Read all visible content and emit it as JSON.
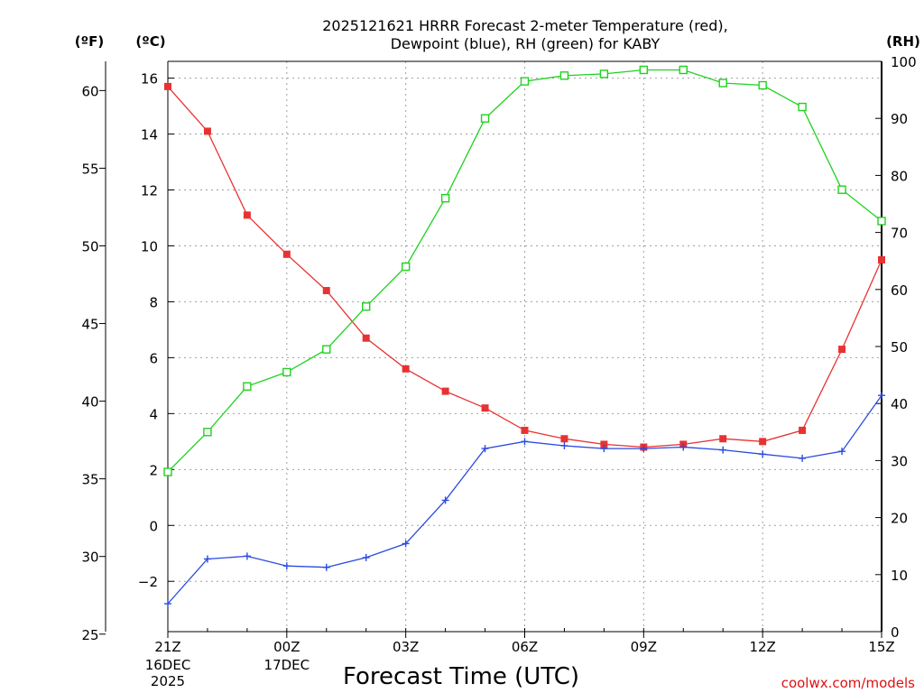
{
  "chart_data": {
    "type": "line",
    "title": [
      "2025121621 HRRR Forecast 2-meter Temperature (red),",
      "Dewpoint (blue), RH (green) for KABY"
    ],
    "xlabel": "Forecast Time (UTC)",
    "credit": "coolwx.com/models",
    "units": {
      "fahrenheit": "(ºF)",
      "celsius": "(ºC)",
      "rh": "(RH)"
    },
    "x_hours": [
      0,
      1,
      2,
      3,
      4,
      5,
      6,
      7,
      8,
      9,
      10,
      11,
      12,
      13,
      14,
      15,
      16,
      17,
      18
    ],
    "x_ticks": [
      {
        "hour": 0,
        "label": "21Z",
        "date": "16DEC",
        "year": "2025"
      },
      {
        "hour": 3,
        "label": "00Z",
        "date": "17DEC",
        "year": ""
      },
      {
        "hour": 6,
        "label": "03Z",
        "date": "",
        "year": ""
      },
      {
        "hour": 9,
        "label": "06Z",
        "date": "",
        "year": ""
      },
      {
        "hour": 12,
        "label": "09Z",
        "date": "",
        "year": ""
      },
      {
        "hour": 15,
        "label": "12Z",
        "date": "",
        "year": ""
      },
      {
        "hour": 18,
        "label": "15Z",
        "date": "",
        "year": ""
      }
    ],
    "celsius_axis": {
      "min": -3.8,
      "max": 16.6,
      "ticks": [
        -2,
        0,
        2,
        4,
        6,
        8,
        10,
        12,
        14,
        16
      ]
    },
    "fahrenheit_axis": {
      "min": 25,
      "max": 62,
      "ticks": [
        25,
        30,
        35,
        40,
        45,
        50,
        55,
        60
      ]
    },
    "rh_axis": {
      "min": 0,
      "max": 100,
      "ticks": [
        0,
        10,
        20,
        30,
        40,
        50,
        60,
        70,
        80,
        90,
        100
      ]
    },
    "series": [
      {
        "name": "Temperature",
        "unit": "C",
        "color": "#e83232",
        "marker": "filled-square",
        "values": [
          15.7,
          14.1,
          11.1,
          9.7,
          8.4,
          6.7,
          5.6,
          4.8,
          4.2,
          3.4,
          3.1,
          2.9,
          2.8,
          2.9,
          3.1,
          3.0,
          3.4,
          6.3,
          9.5
        ]
      },
      {
        "name": "Dewpoint",
        "unit": "C",
        "color": "#2a4ae0",
        "marker": "plus",
        "values": [
          -2.8,
          -1.2,
          -1.1,
          -1.45,
          -1.5,
          -1.15,
          -0.65,
          0.9,
          2.75,
          3.0,
          2.85,
          2.75,
          2.75,
          2.8,
          2.7,
          2.55,
          2.4,
          2.65,
          4.65
        ]
      },
      {
        "name": "RH",
        "unit": "%",
        "color": "#1fd21f",
        "marker": "open-square",
        "values": [
          28,
          35,
          43,
          45.5,
          49.5,
          57,
          64,
          76,
          90,
          96.5,
          97.5,
          97.8,
          98.5,
          98.5,
          96.2,
          95.8,
          92,
          77.5,
          72
        ]
      }
    ]
  }
}
